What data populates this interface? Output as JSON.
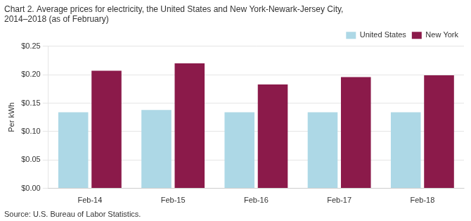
{
  "chart_data": {
    "type": "bar",
    "title": [
      "Chart 2. Average prices for electricity, the United States and New York-Newark-Jersey City,",
      "2014–2018 (as of February)"
    ],
    "ylabel": "Per kWh",
    "source": "Source: U.S. Bureau of Labor Statistics.",
    "categories": [
      "Feb-14",
      "Feb-15",
      "Feb-16",
      "Feb-17",
      "Feb-18"
    ],
    "series": [
      {
        "name": "United States",
        "color": "#add8e6",
        "values": [
          0.134,
          0.138,
          0.134,
          0.134,
          0.134
        ]
      },
      {
        "name": "New York",
        "color": "#8b1a4a",
        "values": [
          0.207,
          0.22,
          0.183,
          0.196,
          0.199
        ]
      }
    ],
    "ylim": [
      0.0,
      0.25
    ],
    "yticks": [
      {
        "value": 0.0,
        "label": "$0.00"
      },
      {
        "value": 0.05,
        "label": "$0.05"
      },
      {
        "value": 0.1,
        "label": "$0.10"
      },
      {
        "value": 0.15,
        "label": "$0.15"
      },
      {
        "value": 0.2,
        "label": "$0.20"
      },
      {
        "value": 0.25,
        "label": "$0.25"
      }
    ],
    "grid": true,
    "legend": "upper right"
  }
}
